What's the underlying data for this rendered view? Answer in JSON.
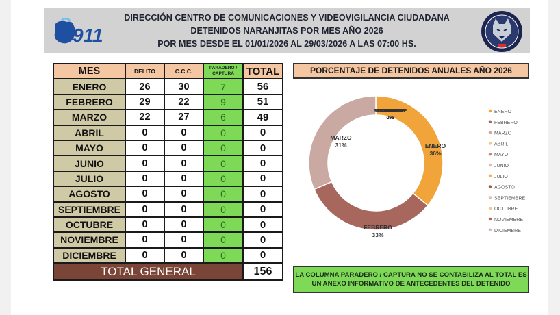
{
  "header": {
    "logo_text": "911",
    "line1": "DIRECCIÓN CENTRO DE COMUNICACIONES Y VIDEOVIGILANCIA CIUDADANA",
    "line2": "DETENIDOS NARANJITAS POR MES AÑO 2026",
    "line3": "POR MES DESDE EL 01/01/2026 AL 29/03/2026 A LAS 07:00 HS."
  },
  "table": {
    "headers": {
      "mes": "MES",
      "delito": "DELITO",
      "ccc": "C.C.C.",
      "paradero": "PARADERO / CAPTURA",
      "total": "TOTAL"
    },
    "rows": [
      {
        "mes": "ENERO",
        "delito": "26",
        "ccc": "30",
        "paradero": "7",
        "total": "56"
      },
      {
        "mes": "FEBRERO",
        "delito": "29",
        "ccc": "22",
        "paradero": "9",
        "total": "51"
      },
      {
        "mes": "MARZO",
        "delito": "22",
        "ccc": "27",
        "paradero": "6",
        "total": "49"
      },
      {
        "mes": "ABRIL",
        "delito": "0",
        "ccc": "0",
        "paradero": "0",
        "total": "0"
      },
      {
        "mes": "MAYO",
        "delito": "0",
        "ccc": "0",
        "paradero": "0",
        "total": "0"
      },
      {
        "mes": "JUNIO",
        "delito": "0",
        "ccc": "0",
        "paradero": "0",
        "total": "0"
      },
      {
        "mes": "JULIO",
        "delito": "0",
        "ccc": "0",
        "paradero": "0",
        "total": "0"
      },
      {
        "mes": "AGOSTO",
        "delito": "0",
        "ccc": "0",
        "paradero": "0",
        "total": "0"
      },
      {
        "mes": "SEPTIEMBRE",
        "delito": "0",
        "ccc": "0",
        "paradero": "0",
        "total": "0"
      },
      {
        "mes": "OCTUBRE",
        "delito": "0",
        "ccc": "0",
        "paradero": "0",
        "total": "0"
      },
      {
        "mes": "NOVIEMBRE",
        "delito": "0",
        "ccc": "0",
        "paradero": "0",
        "total": "0"
      },
      {
        "mes": "DICIEMBRE",
        "delito": "0",
        "ccc": "0",
        "paradero": "0",
        "total": "0"
      }
    ],
    "total_label": "TOTAL GENERAL",
    "total_value": "156"
  },
  "note": {
    "line1": "LA COLUMNA PARADERO / CAPTURA NO SE CONTABILIZA AL TOTAL ES",
    "line2": "UN ANEXO INFORMATIVO DE ANTECEDENTES DEL DETENIDO"
  },
  "colors": {
    "header_bg": "#d2d2d2",
    "orange_header": "#f4c7a2",
    "month_cell": "#cfc9a6",
    "green": "#7ed957",
    "total_bar": "#7a4436",
    "enero": "#f0a43a",
    "febrero": "#a8675c",
    "marzo": "#c9a9a2"
  },
  "chart_data": {
    "type": "pie",
    "donut": true,
    "title": "PORCENTAJE DE DETENIDOS ANUALES AÑO 2026",
    "legend_position": "right",
    "categories": [
      "ENERO",
      "FEBRERO",
      "MARZO",
      "ABRIL",
      "MAYO",
      "JUNIO",
      "JULIO",
      "AGOSTO",
      "SEPTIEMBRE",
      "OCTUBRE",
      "NOVIEMBRE",
      "DICIEMBRE"
    ],
    "values": [
      56,
      51,
      49,
      0,
      0,
      0,
      0,
      0,
      0,
      0,
      0,
      0
    ],
    "percent_labels": [
      "36%",
      "33%",
      "31%",
      "0%",
      "0%",
      "0%",
      "0%",
      "0%",
      "0%",
      "0%",
      "0%",
      "0%"
    ],
    "colors": [
      "#f0a43a",
      "#a8675c",
      "#c9a9a2",
      "#f3c98e",
      "#c48577",
      "#d8c0ba",
      "#f7b04e",
      "#9a5a4e",
      "#d6bfb9",
      "#f3c98e",
      "#a8675c",
      "#d4b8b1"
    ]
  }
}
